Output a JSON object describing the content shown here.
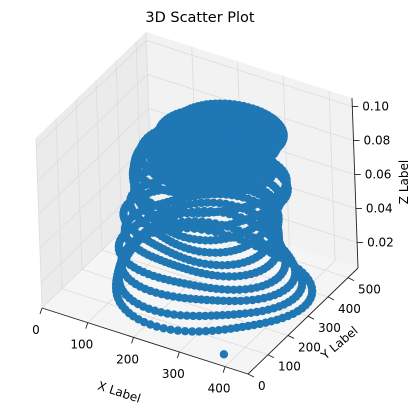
{
  "chart_data": {
    "type": "scatter",
    "projection": "3d",
    "title": "3D Scatter Plot",
    "xlabel": "X Label",
    "ylabel": "Y Label",
    "zlabel": "Z Label",
    "xlim": [
      0,
      450
    ],
    "ylim": [
      0,
      550
    ],
    "zlim": [
      0.005,
      0.105
    ],
    "xticks": [
      0,
      100,
      200,
      300,
      400
    ],
    "yticks": [
      0,
      100,
      200,
      300,
      400,
      500
    ],
    "zticks": [
      0.02,
      0.04,
      0.06,
      0.08,
      0.1
    ],
    "xtick_labels": [
      "0",
      "100",
      "200",
      "300",
      "400"
    ],
    "ytick_labels": [
      "0",
      "100",
      "200",
      "300",
      "400",
      "500"
    ],
    "ztick_labels": [
      "0.02",
      "0.04",
      "0.06",
      "0.08",
      "0.10"
    ],
    "grid": true,
    "marker_color": "#1f77b4",
    "series": [
      {
        "rings": [
          {
            "cx": 230,
            "cy": 300,
            "rx": 190,
            "ry": 220,
            "z": 0.006
          },
          {
            "cx": 230,
            "cy": 300,
            "rx": 175,
            "ry": 205,
            "z": 0.012
          },
          {
            "cx": 235,
            "cy": 300,
            "rx": 165,
            "ry": 195,
            "z": 0.02
          },
          {
            "cx": 235,
            "cy": 290,
            "rx": 160,
            "ry": 185,
            "z": 0.028
          },
          {
            "cx": 240,
            "cy": 290,
            "rx": 150,
            "ry": 175,
            "z": 0.036
          },
          {
            "cx": 240,
            "cy": 280,
            "rx": 150,
            "ry": 170,
            "z": 0.044
          },
          {
            "cx": 240,
            "cy": 280,
            "rx": 140,
            "ry": 160,
            "z": 0.05
          },
          {
            "cx": 245,
            "cy": 275,
            "rx": 140,
            "ry": 160,
            "z": 0.058
          },
          {
            "cx": 245,
            "cy": 275,
            "rx": 150,
            "ry": 170,
            "z": 0.066
          },
          {
            "cx": 245,
            "cy": 270,
            "rx": 150,
            "ry": 170,
            "z": 0.074
          },
          {
            "cx": 245,
            "cy": 265,
            "rx": 130,
            "ry": 150,
            "z": 0.082
          }
        ],
        "blobs": [
          {
            "cx": 250,
            "cy": 270,
            "rx": 130,
            "ry": 150,
            "z": 0.085
          },
          {
            "cx": 260,
            "cy": 280,
            "rx": 120,
            "ry": 140,
            "z": 0.09
          },
          {
            "cx": 270,
            "cy": 290,
            "rx": 120,
            "ry": 130,
            "z": 0.095
          },
          {
            "cx": 290,
            "cy": 300,
            "rx": 110,
            "ry": 120,
            "z": 0.1
          }
        ],
        "points": [
          {
            "x": 380,
            "y": 40,
            "z": 0.006
          }
        ]
      }
    ]
  }
}
